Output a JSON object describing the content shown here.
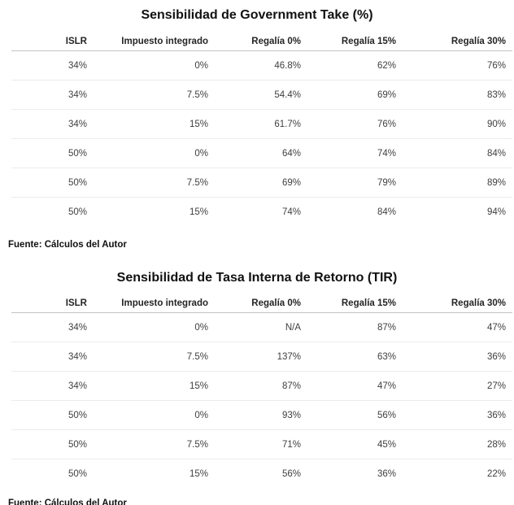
{
  "colors": {
    "background": "#ffffff",
    "title_text": "#111111",
    "header_text": "#252525",
    "cell_text": "#3f3f3f",
    "header_rule": "#c4c4c4",
    "row_rule": "#ececec"
  },
  "tables": [
    {
      "title": "Sensibilidad de Government Take (%)",
      "headers": [
        "ISLR",
        "Impuesto integrado",
        "Regalía 0%",
        "Regalía 15%",
        "Regalía 30%"
      ],
      "rows": [
        [
          "34%",
          "0%",
          "46.8%",
          "62%",
          "76%"
        ],
        [
          "34%",
          "7.5%",
          "54.4%",
          "69%",
          "83%"
        ],
        [
          "34%",
          "15%",
          "61.7%",
          "76%",
          "90%"
        ],
        [
          "50%",
          "0%",
          "64%",
          "74%",
          "84%"
        ],
        [
          "50%",
          "7.5%",
          "69%",
          "79%",
          "89%"
        ],
        [
          "50%",
          "15%",
          "74%",
          "84%",
          "94%"
        ]
      ],
      "source": "Fuente: Cálculos del Autor"
    },
    {
      "title": "Sensibilidad de Tasa Interna de Retorno (TIR)",
      "headers": [
        "ISLR",
        "Impuesto integrado",
        "Regalía 0%",
        "Regalía 15%",
        "Regalía 30%"
      ],
      "rows": [
        [
          "34%",
          "0%",
          "N/A",
          "87%",
          "47%"
        ],
        [
          "34%",
          "7.5%",
          "137%",
          "63%",
          "36%"
        ],
        [
          "34%",
          "15%",
          "87%",
          "47%",
          "27%"
        ],
        [
          "50%",
          "0%",
          "93%",
          "56%",
          "36%"
        ],
        [
          "50%",
          "7.5%",
          "71%",
          "45%",
          "28%"
        ],
        [
          "50%",
          "15%",
          "56%",
          "36%",
          "22%"
        ]
      ],
      "source": "Fuente: Cálculos del Autor"
    }
  ]
}
